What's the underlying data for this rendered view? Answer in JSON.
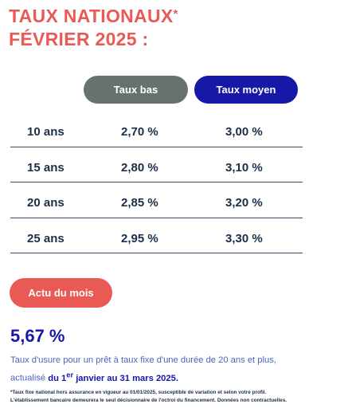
{
  "header": {
    "title_line1": "TAUX NATIONAUX",
    "title_star": "*",
    "title_line2": "FÉVRIER 2025 :"
  },
  "columns": {
    "bas_label": "Taux bas",
    "moyen_label": "Taux moyen"
  },
  "rates": [
    {
      "duration": "10 ans",
      "bas": "2,70 %",
      "moyen": "3,00 %"
    },
    {
      "duration": "15 ans",
      "bas": "2,80 %",
      "moyen": "3,10 %"
    },
    {
      "duration": "20 ans",
      "bas": "2,85 %",
      "moyen": "3,20 %"
    },
    {
      "duration": "25 ans",
      "bas": "2,95 %",
      "moyen": "3,30 %"
    }
  ],
  "actu": {
    "label": "Actu du mois"
  },
  "usure": {
    "value": "5,67 %",
    "line1": "Taux d'usure pour un prêt à taux fixe d'une durée de 20 ans et plus,",
    "line2_prefix": "actualisé ",
    "line2_bold_a": "du 1",
    "line2_sup": "er",
    "line2_bold_b": " janvier au 31 mars 2025."
  },
  "footnote": {
    "line1": "*Taux fixe national hors assurance en vigueur au 01/01/2025, susceptible de variation et selon votre profil.",
    "line2": "L'établissement bancaire demeurera le seul décisionnaire de l'octroi du financement. Données non contractuelles."
  },
  "colors": {
    "accent_red": "#ea5a55",
    "navy": "#1717a8",
    "grey_pill": "#68726d",
    "text_dark": "#1b2f47"
  }
}
